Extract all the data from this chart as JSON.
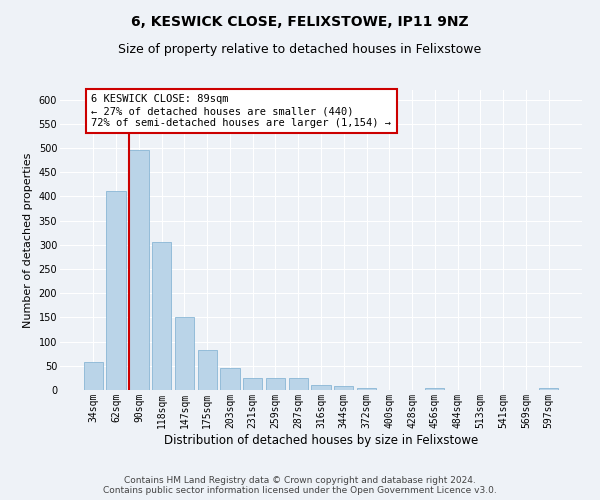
{
  "title": "6, KESWICK CLOSE, FELIXSTOWE, IP11 9NZ",
  "subtitle": "Size of property relative to detached houses in Felixstowe",
  "xlabel": "Distribution of detached houses by size in Felixstowe",
  "ylabel": "Number of detached properties",
  "categories": [
    "34sqm",
    "62sqm",
    "90sqm",
    "118sqm",
    "147sqm",
    "175sqm",
    "203sqm",
    "231sqm",
    "259sqm",
    "287sqm",
    "316sqm",
    "344sqm",
    "372sqm",
    "400sqm",
    "428sqm",
    "456sqm",
    "484sqm",
    "513sqm",
    "541sqm",
    "569sqm",
    "597sqm"
  ],
  "values": [
    58,
    412,
    495,
    305,
    150,
    82,
    45,
    25,
    25,
    25,
    10,
    8,
    5,
    0,
    0,
    5,
    0,
    0,
    0,
    0,
    5
  ],
  "bar_color": "#bad4e8",
  "bar_edge_color": "#7aaed0",
  "highlight_index": 2,
  "highlight_line_color": "#cc0000",
  "annotation_text": "6 KESWICK CLOSE: 89sqm\n← 27% of detached houses are smaller (440)\n72% of semi-detached houses are larger (1,154) →",
  "annotation_box_color": "#ffffff",
  "annotation_box_edge_color": "#cc0000",
  "ylim": [
    0,
    620
  ],
  "yticks": [
    0,
    50,
    100,
    150,
    200,
    250,
    300,
    350,
    400,
    450,
    500,
    550,
    600
  ],
  "footer_line1": "Contains HM Land Registry data © Crown copyright and database right 2024.",
  "footer_line2": "Contains public sector information licensed under the Open Government Licence v3.0.",
  "background_color": "#eef2f7",
  "plot_bg_color": "#eef2f7",
  "grid_color": "#ffffff",
  "title_fontsize": 10,
  "subtitle_fontsize": 9,
  "xlabel_fontsize": 8.5,
  "ylabel_fontsize": 8,
  "tick_fontsize": 7,
  "footer_fontsize": 6.5,
  "annotation_fontsize": 7.5
}
